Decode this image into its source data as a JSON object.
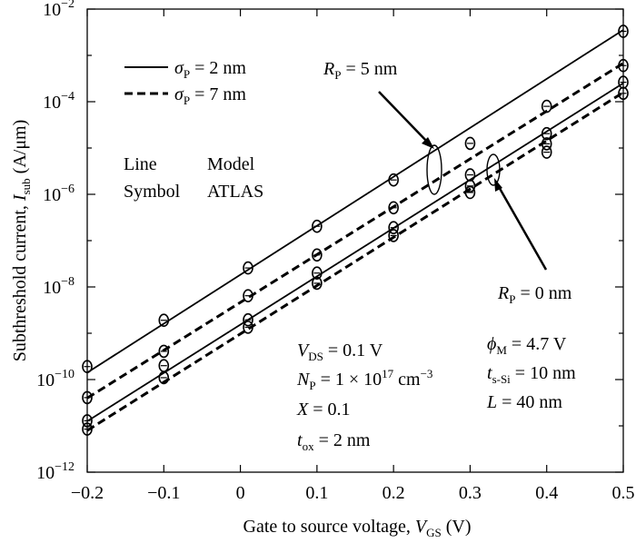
{
  "chart_data": {
    "type": "line",
    "xlabel": "Gate to source voltage, ",
    "xlabel_var": "V",
    "xlabel_sub": "GS",
    "xlabel_unit": " (V)",
    "ylabel": "Subthreshold current, ",
    "ylabel_var": "I",
    "ylabel_sub": "sub",
    "ylabel_unit": " (A/μm)",
    "xlim": [
      -0.2,
      0.5
    ],
    "ylim_log10": [
      -12,
      -2
    ],
    "log_y": true,
    "grid": false,
    "x_ticks": [
      -0.2,
      -0.1,
      0,
      0.1,
      0.2,
      0.3,
      0.4,
      0.5
    ],
    "x_tick_labels": [
      "−0.2",
      "−0.1",
      "0",
      "0.1",
      "0.2",
      "0.3",
      "0.4",
      "0.5"
    ],
    "y_ticks_log10": [
      -12,
      -10,
      -8,
      -6,
      -4,
      -2
    ],
    "y_tick_base": "10",
    "y_tick_exponents": [
      "−12",
      "−10",
      "−8",
      "−6",
      "−4",
      "−2"
    ],
    "legend": {
      "position": "top-left",
      "items": [
        {
          "style": "solid",
          "var": "σ",
          "sub": "P",
          "text": " = 2 nm"
        },
        {
          "style": "dashed",
          "var": "σ",
          "sub": "P",
          "text": " = 7 nm"
        }
      ],
      "table": {
        "row1": [
          "Line",
          "Model"
        ],
        "row2": [
          "Symbol",
          "ATLAS"
        ]
      }
    },
    "series": [
      {
        "group": "R_P = 5 nm",
        "sigma": "2 nm",
        "style": "solid",
        "log10_y": [
          -9.72,
          -8.72,
          -7.59,
          -6.69,
          -5.69,
          -4.9,
          -4.1,
          -2.48
        ]
      },
      {
        "group": "R_P = 5 nm",
        "sigma": "7 nm",
        "style": "dashed",
        "log10_y": [
          -10.39,
          -9.39,
          -8.19,
          -7.31,
          -6.29,
          -5.58,
          -4.69,
          -3.22
        ]
      },
      {
        "group": "R_P = 0 nm",
        "sigma": "2 nm",
        "style": "solid",
        "log10_y": [
          -10.89,
          -9.7,
          -8.71,
          -7.7,
          -6.72,
          -5.82,
          -4.91,
          -3.58
        ]
      },
      {
        "group": "R_P = 0 nm",
        "sigma": "7 nm",
        "style": "dashed",
        "log10_y": [
          -11.07,
          -9.96,
          -8.87,
          -7.92,
          -6.89,
          -5.96,
          -5.09,
          -3.82
        ]
      }
    ],
    "x": [
      -0.2,
      -0.1,
      0.01,
      0.1,
      0.2,
      0.3,
      0.4,
      0.5
    ],
    "lines_log10": [
      {
        "style": "solid",
        "group": "R_P = 5 nm",
        "x": [
          -0.2,
          0.5
        ],
        "log10_y": [
          -9.85,
          -2.45
        ]
      },
      {
        "style": "dashed",
        "group": "R_P = 5 nm",
        "x": [
          -0.2,
          0.5
        ],
        "log10_y": [
          -10.4,
          -3.17
        ]
      },
      {
        "style": "solid",
        "group": "R_P = 0 nm",
        "x": [
          -0.2,
          0.5
        ],
        "log10_y": [
          -10.9,
          -3.6
        ]
      },
      {
        "style": "dashed",
        "group": "R_P = 0 nm",
        "x": [
          -0.2,
          0.5
        ],
        "log10_y": [
          -11.1,
          -3.8
        ]
      }
    ],
    "annotations": {
      "rp5": {
        "var": "R",
        "sub": "P",
        "text": " = 5 nm"
      },
      "rp0": {
        "var": "R",
        "sub": "P",
        "text": " = 0 nm"
      },
      "params_left": [
        {
          "var": "V",
          "sub": "DS",
          "text": " = 0.1 V"
        },
        {
          "var": "N",
          "sub": "P",
          "text": " = 1 × 10",
          "sup": "17",
          "tail": " cm",
          "sup2": "−3"
        },
        {
          "var": "X",
          "sub": "",
          "text": " = 0.1"
        },
        {
          "var": "t",
          "sub": "ox",
          "text": " = 2 nm"
        }
      ],
      "params_right": [
        {
          "var": "ϕ",
          "sub": "M",
          "text": " = 4.7 V"
        },
        {
          "var": "t",
          "sub": "s-Si",
          "text": " = 10 nm"
        },
        {
          "var": "L",
          "sub": "",
          "text": " = 40 nm"
        }
      ]
    },
    "colors": {
      "line": "#000000",
      "marker": "#000000",
      "background": "#ffffff"
    }
  }
}
